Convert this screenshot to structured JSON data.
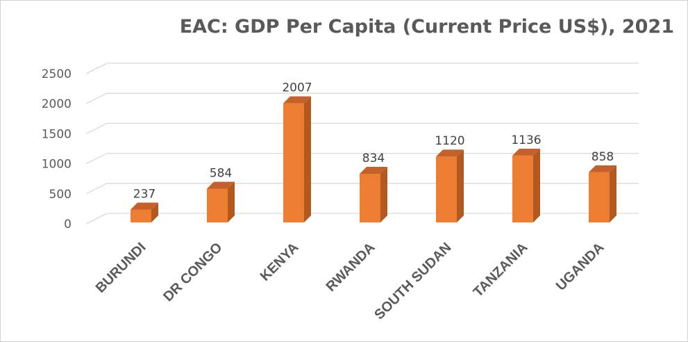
{
  "chart_data": {
    "type": "bar",
    "title": "EAC: GDP Per Capita (Current Price US$), 2021",
    "categories": [
      "BURUNDI",
      "DR CONGO",
      "KENYA",
      "RWANDA",
      "SOUTH SUDAN",
      "TANZANIA",
      "UGANDA"
    ],
    "values": [
      237,
      584,
      2007,
      834,
      1120,
      1136,
      858
    ],
    "data_labels": [
      "237",
      "584",
      "2007",
      "834",
      "1120",
      "1136",
      "858"
    ],
    "yticks": [
      0,
      500,
      1000,
      1500,
      2000,
      2500
    ],
    "ylim": [
      0,
      2500
    ],
    "xlabel": "",
    "ylabel": "",
    "grid": true,
    "legend": "none",
    "style": "3d-column",
    "bar_color": "#ED7D31",
    "bar_side_color": "#B2591F",
    "bar_top_color": "#C4612A",
    "grid_color": "#D9D9D9",
    "text_color": "#595959"
  }
}
